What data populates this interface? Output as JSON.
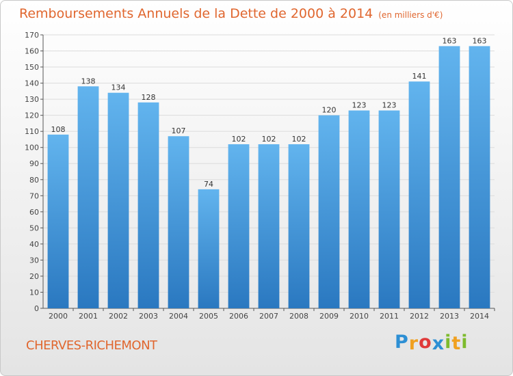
{
  "title": "Remboursements Annuels de la Dette de 2000 à 2014",
  "subtitle": "(en milliers d'€)",
  "place": "CHERVES-RICHEMONT",
  "logo": {
    "letters": [
      "P",
      "r",
      "o",
      "x",
      "i",
      "t",
      "i"
    ],
    "colors": [
      "#2d8fd4",
      "#f0a020",
      "#e03a3a",
      "#2d8fd4",
      "#7dbb2d",
      "#f0a020",
      "#7dbb2d"
    ]
  },
  "colors": {
    "bar_top": "#62b4ee",
    "bar_bottom": "#2a78c0",
    "title": "#e0662e"
  },
  "chart_data": {
    "type": "bar",
    "categories": [
      "2000",
      "2001",
      "2002",
      "2003",
      "2004",
      "2005",
      "2006",
      "2007",
      "2008",
      "2009",
      "2010",
      "2011",
      "2012",
      "2013",
      "2014"
    ],
    "values": [
      108,
      138,
      134,
      128,
      107,
      74,
      102,
      102,
      102,
      120,
      123,
      123,
      141,
      163,
      163
    ],
    "ylim": [
      0,
      170
    ],
    "yticks": [
      0,
      10,
      20,
      30,
      40,
      50,
      60,
      70,
      80,
      90,
      100,
      110,
      120,
      130,
      140,
      150,
      160,
      170
    ],
    "grid": true
  }
}
